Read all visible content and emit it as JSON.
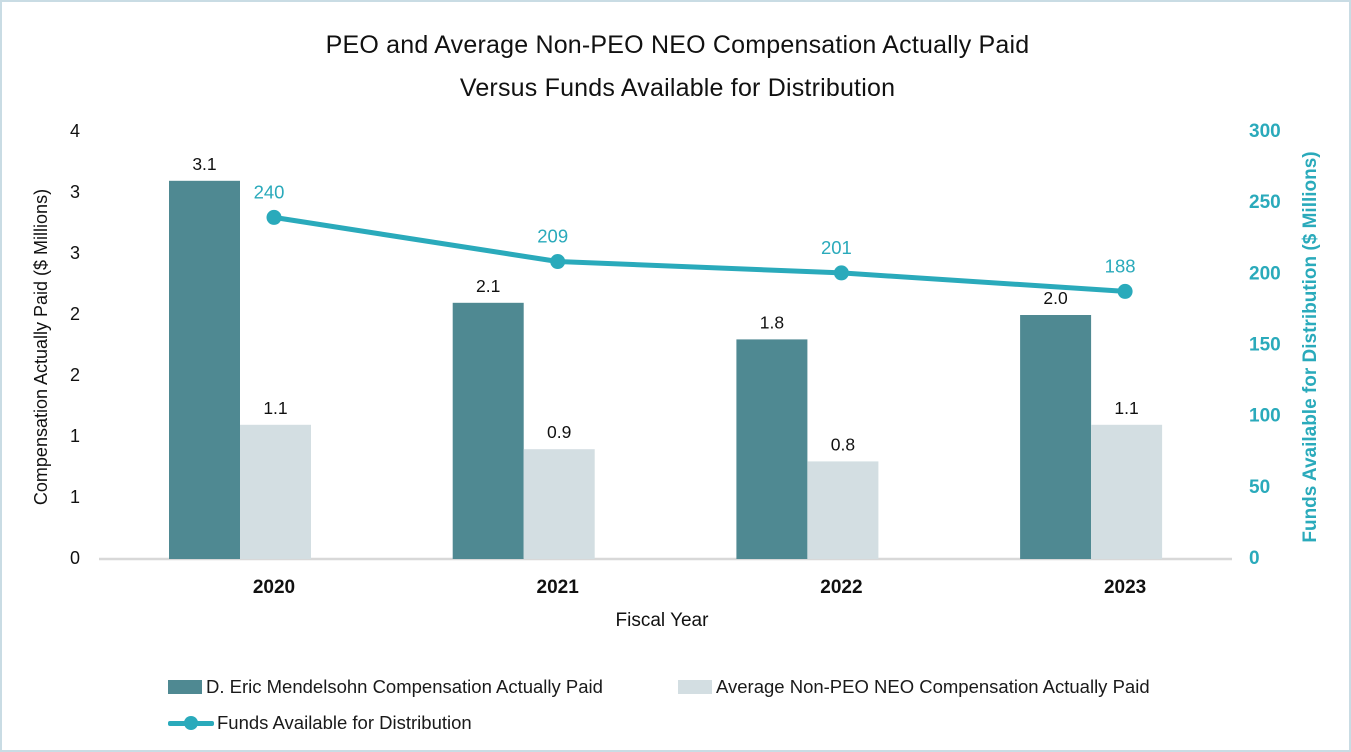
{
  "window": {
    "background": "#ffffff",
    "border_color": "#c9dce4"
  },
  "title": {
    "line1": "PEO and Average Non-PEO NEO Compensation Actually Paid",
    "line2": "Versus Funds Available for Distribution"
  },
  "chart_data": {
    "type": "combo-bar-line",
    "categories": [
      "2020",
      "2021",
      "2022",
      "2023"
    ],
    "series": [
      {
        "name": "D. Eric Mendelsohn Compensation Actually Paid",
        "type": "bar",
        "axis": "left",
        "color": "#4f8992",
        "values": [
          3.1,
          2.1,
          1.8,
          2.0
        ],
        "data_labels": [
          "3.1",
          "2.1",
          "1.8",
          "2.0"
        ],
        "label_color": "#111111"
      },
      {
        "name": "Average Non-PEO NEO Compensation Actually Paid",
        "type": "bar",
        "axis": "left",
        "color": "#d3dee2",
        "values": [
          1.1,
          0.9,
          0.8,
          1.1
        ],
        "data_labels": [
          "1.1",
          "0.9",
          "0.8",
          "1.1"
        ],
        "label_color": "#111111"
      },
      {
        "name": "Funds Available for Distribution",
        "type": "line",
        "axis": "right",
        "color": "#2aaabb",
        "values": [
          240,
          209,
          201,
          188
        ],
        "data_labels": [
          "240",
          "209",
          "201",
          "188"
        ],
        "label_color": "#2aaabb"
      }
    ],
    "x_axis": {
      "title": "Fiscal Year",
      "tick_label_color": "#111111"
    },
    "left_axis": {
      "title": "Compensation Actually Paid ($ Millions)",
      "min": 0,
      "max": 3.5,
      "step": 0.5,
      "tick_labels_bottom_to_top": [
        "0",
        "1",
        "1",
        "2",
        "2",
        "3",
        "3",
        "4"
      ],
      "color": "#111111"
    },
    "right_axis": {
      "title": "Funds Available for Distribution ($ Millions)",
      "min": 0,
      "max": 300,
      "step": 50,
      "tick_labels_bottom_to_top": [
        "0",
        "50",
        "100",
        "150",
        "200",
        "250",
        "300"
      ],
      "color": "#2aaabb"
    },
    "axis_line_color": "#d8d8d8",
    "grid": false,
    "legend_position": "bottom"
  }
}
